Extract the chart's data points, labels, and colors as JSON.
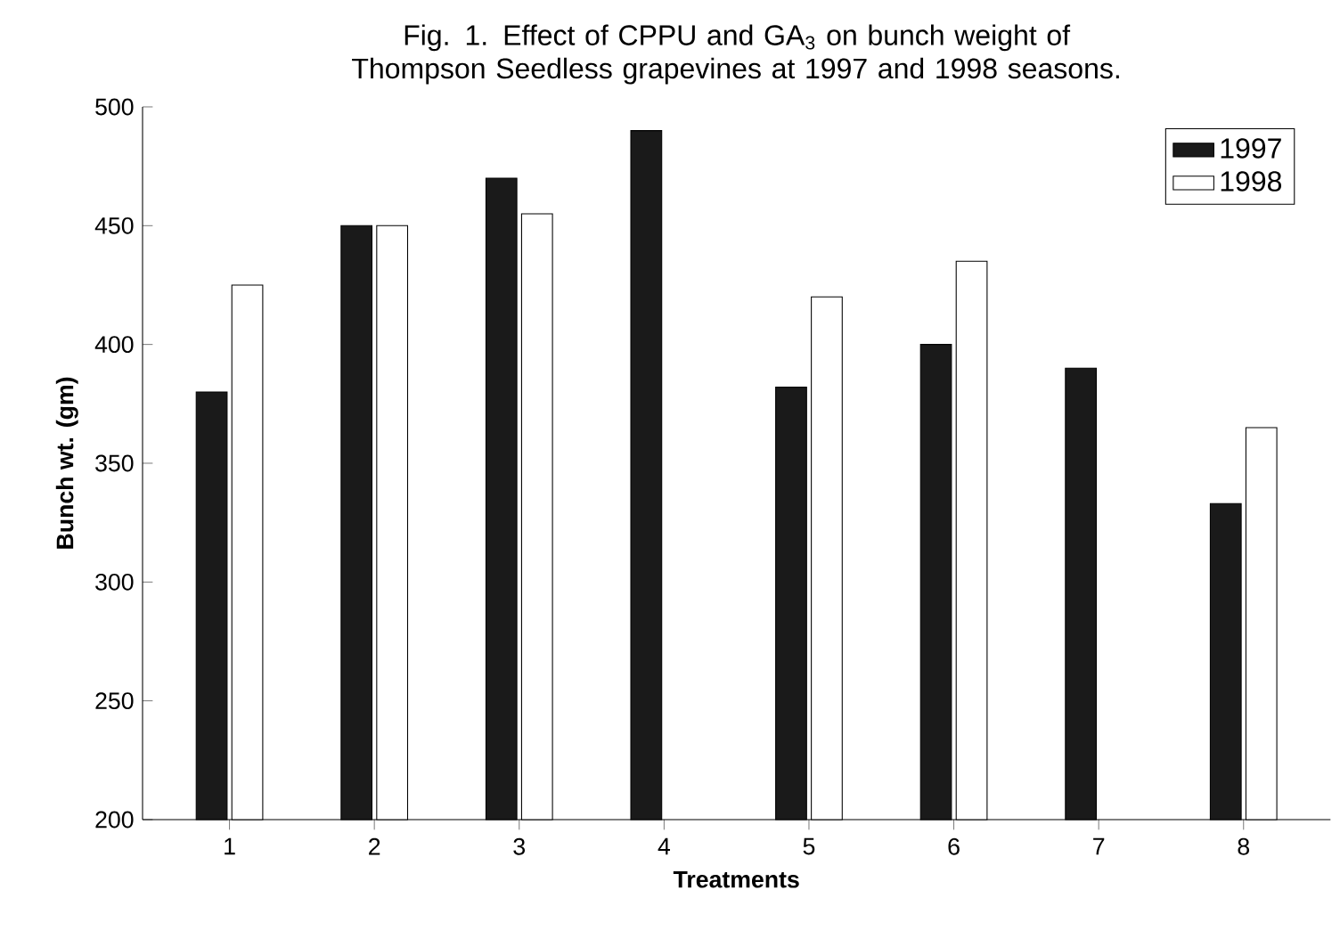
{
  "chart_data": {
    "type": "bar",
    "title": "Fig. 1. Effect of CPPU and GA$_{3}$ on bunch weight of Thompson Seedless grapevines at 1997 and 1998 seasons.",
    "xlabel": "Treatments",
    "ylabel": "Bunch wt. (gm)",
    "categories": [
      "1",
      "2",
      "3",
      "4",
      "5",
      "6",
      "7",
      "8"
    ],
    "series": [
      {
        "name": "1997",
        "color": "#1a1a1a",
        "values": [
          380,
          450,
          470,
          490,
          382,
          400,
          390,
          333
        ]
      },
      {
        "name": "1998",
        "color": "#ffffff",
        "values": [
          425,
          450,
          455,
          null,
          420,
          435,
          null,
          365
        ]
      }
    ],
    "ylim": [
      200,
      500
    ],
    "yticks": [
      200,
      250,
      300,
      350,
      400,
      450,
      500
    ],
    "legend": "top right"
  }
}
